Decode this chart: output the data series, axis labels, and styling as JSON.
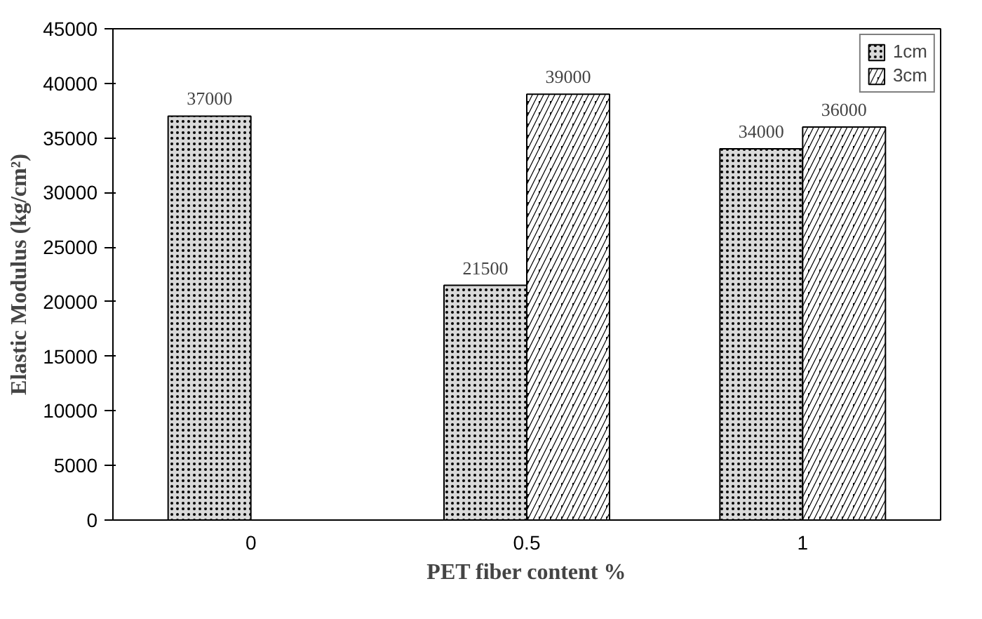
{
  "chart_data": {
    "type": "bar",
    "xlabel": "PET fiber content %",
    "ylabel": "Elastic Modulus (kg/cm²)",
    "categories": [
      "0",
      "0.5",
      "1"
    ],
    "series": [
      {
        "name": "1cm",
        "color": "#d9d9d9",
        "values": [
          37000,
          21500,
          34000
        ]
      },
      {
        "name": "3cm",
        "color": "#000000",
        "values": [
          null,
          39000,
          36000
        ]
      }
    ],
    "ylim": [
      0,
      45000
    ],
    "yticks": [
      0,
      5000,
      10000,
      15000,
      20000,
      25000,
      30000,
      35000,
      40000,
      45000
    ],
    "grid": false,
    "legend": "top right",
    "data_labels": true
  }
}
